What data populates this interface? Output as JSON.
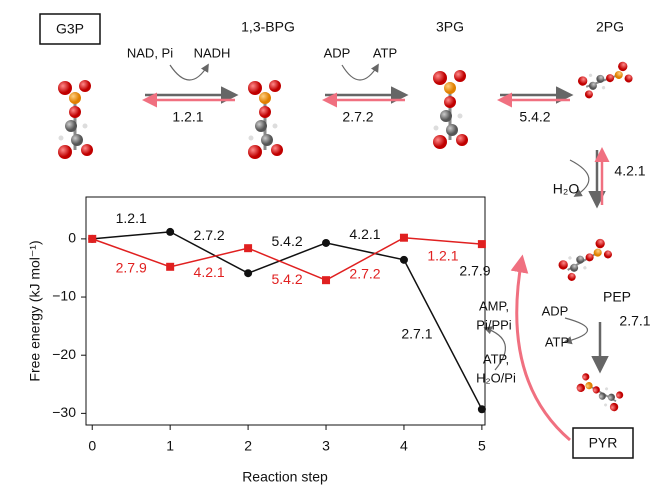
{
  "chart_data": {
    "type": "line",
    "x_label": "Reaction step",
    "y_label": "Free energy (kJ mol⁻¹)",
    "x": [
      0,
      1,
      2,
      3,
      4,
      5
    ],
    "xlim": [
      -0.08,
      5.04
    ],
    "xticks": [
      0,
      1,
      2,
      3,
      4,
      5
    ],
    "ylim": [
      -32,
      7.2
    ],
    "yticks": [
      0,
      {
        "value": -10,
        "label": "−10"
      },
      {
        "value": -20,
        "label": "−20"
      },
      {
        "value": -30,
        "label": "−30"
      }
    ],
    "series": [
      {
        "color": "#111111",
        "marker": "circle",
        "values": [
          0,
          1.2,
          -5.9,
          -0.7,
          -3.6,
          -29.3
        ],
        "segment_labels": [
          "1.2.1",
          "2.7.2",
          "5.4.2",
          "4.2.1",
          "2.7.1"
        ]
      },
      {
        "color": "#e02020",
        "marker": "square",
        "values": [
          0,
          -4.8,
          -1.6,
          -7.1,
          0.2,
          -0.9
        ],
        "segment_labels": [
          "2.7.9",
          "4.2.1",
          "5.4.2",
          "2.7.2",
          "1.2.1"
        ]
      }
    ]
  },
  "diagram": {
    "metabolites": [
      "G3P",
      "1,3-BPG",
      "3PG",
      "2PG",
      "PEP",
      "PYR"
    ],
    "steps": [
      {
        "enzyme": "1.2.1",
        "in": "NAD, Pi",
        "out": "NADH"
      },
      {
        "enzyme": "2.7.2",
        "in": "ADP",
        "out": "ATP"
      },
      {
        "enzyme": "5.4.2"
      },
      {
        "enzyme": "4.2.1",
        "out": "H₂O"
      },
      {
        "enzyme": "2.7.1",
        "in": "ADP",
        "out": "ATP"
      },
      {
        "enzyme": "2.7.9",
        "in": [
          "ATP,",
          "H₂O/Pi"
        ],
        "out": [
          "AMP,",
          "Pi/PPi"
        ]
      }
    ]
  }
}
